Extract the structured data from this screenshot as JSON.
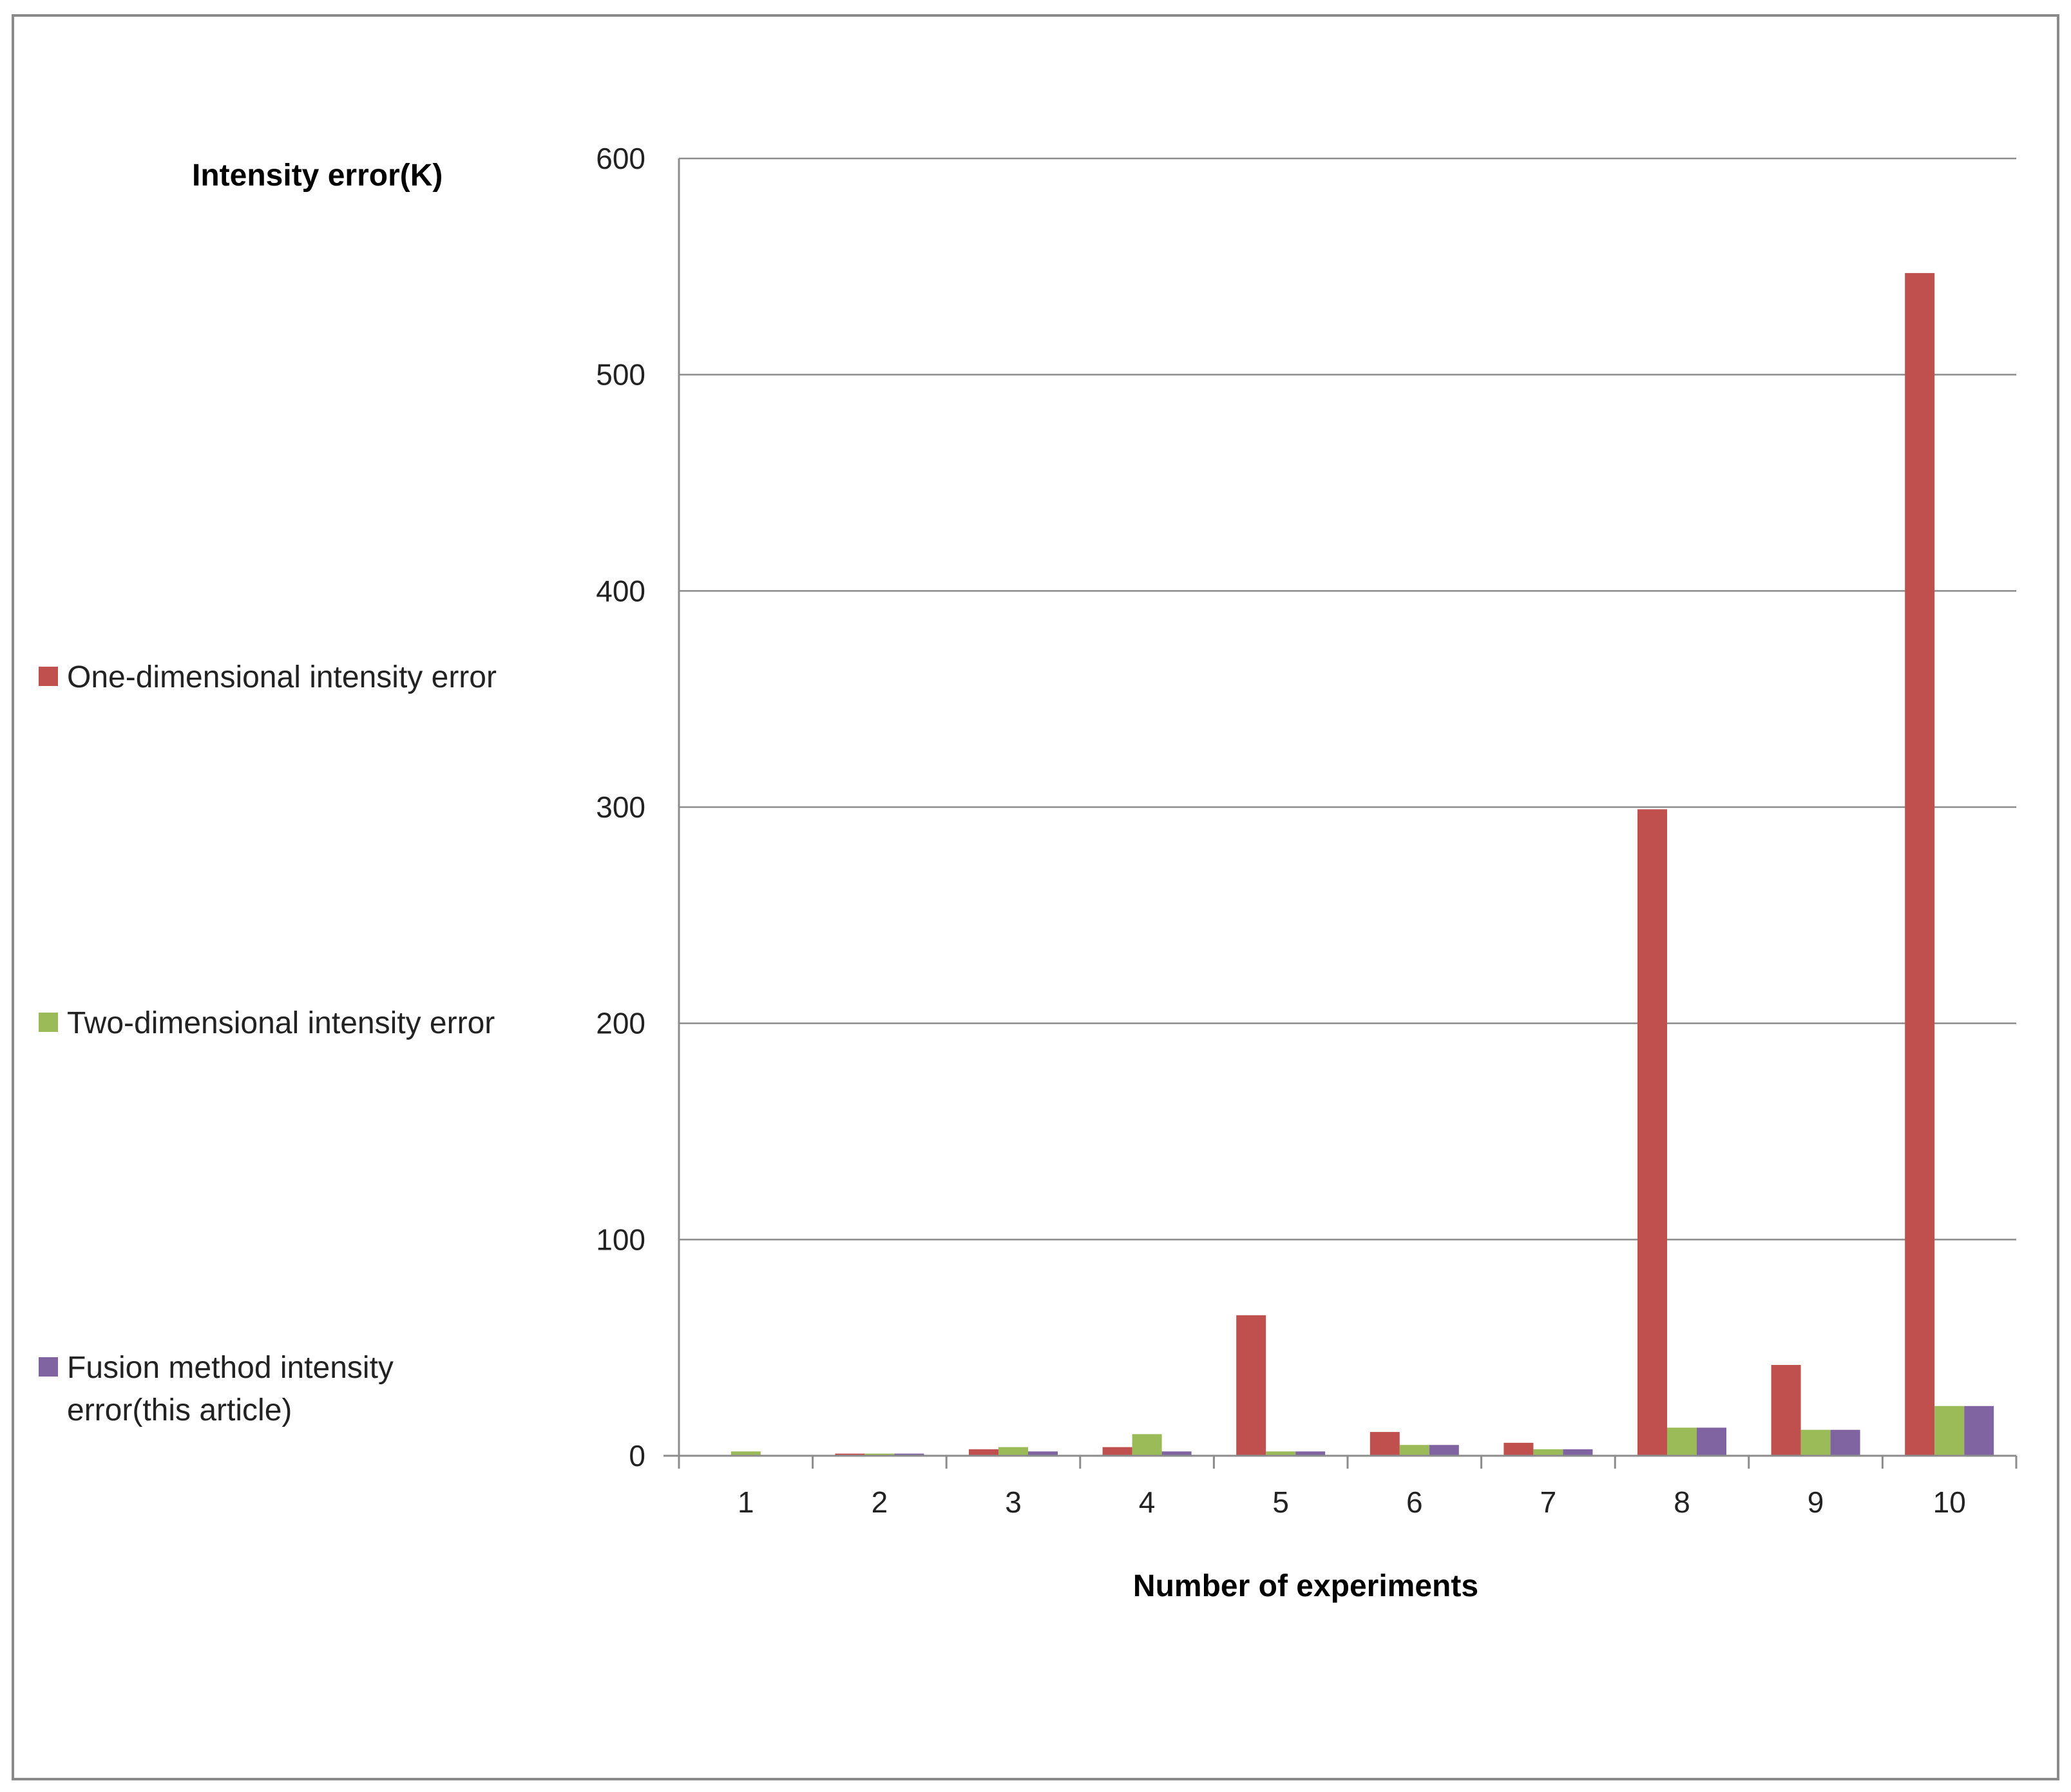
{
  "chart_data": {
    "type": "bar",
    "title": "",
    "ylabel": "Intensity  error(K)",
    "xlabel": "Number of experiments",
    "categories": [
      "1",
      "2",
      "3",
      "4",
      "5",
      "6",
      "7",
      "8",
      "9",
      "10"
    ],
    "ylim": [
      0,
      600
    ],
    "yticks": [
      "0",
      "100",
      "200",
      "300",
      "400",
      "500",
      "600"
    ],
    "grid": true,
    "legend_position": "left",
    "series": [
      {
        "name": "One-dimensional intensity error",
        "color": "#c0504d",
        "values": [
          0,
          1,
          3,
          4,
          65,
          11,
          6,
          299,
          42,
          547
        ]
      },
      {
        "name": "Two-dimensional  intensity error",
        "color": "#9bbb59",
        "values": [
          2,
          1,
          4,
          10,
          2,
          5,
          3,
          13,
          12,
          23
        ]
      },
      {
        "name": "Fusion method  intensity error(this article)",
        "name_lines": [
          "Fusion method  intensity",
          "error(this article)"
        ],
        "color": "#8064a2",
        "values": [
          0,
          1,
          2,
          2,
          2,
          5,
          3,
          13,
          12,
          23
        ]
      }
    ]
  }
}
